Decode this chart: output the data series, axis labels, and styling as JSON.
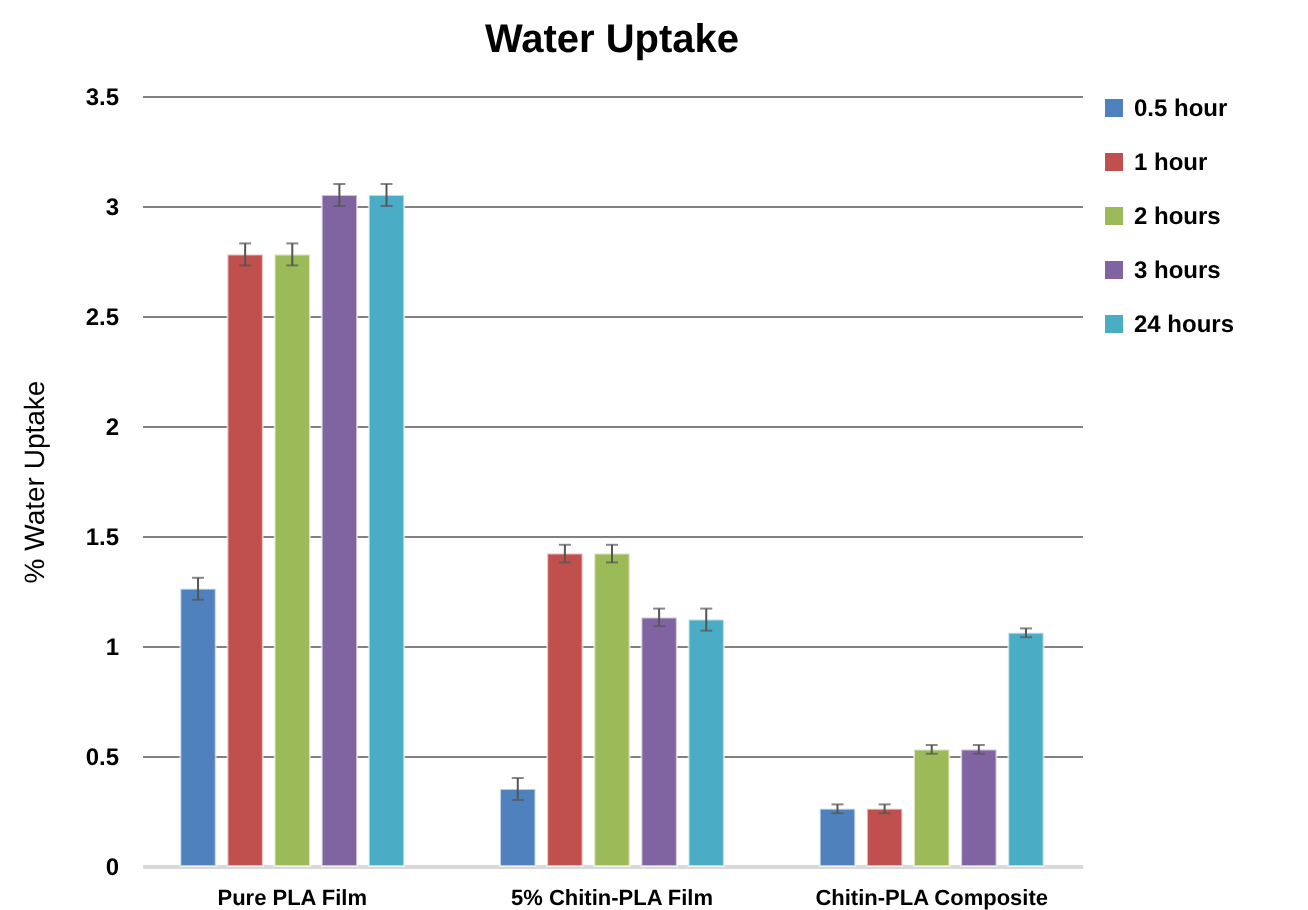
{
  "chart_data": {
    "type": "bar",
    "title": "Water Uptake",
    "ylabel": "% Water Uptake",
    "categories": [
      "Pure PLA Film",
      "5% Chitin-PLA Film",
      "Chitin-PLA Composite"
    ],
    "series": [
      {
        "name": "0.5 hour",
        "color": "#4f81bd",
        "values": [
          1.26,
          0.35,
          0.26
        ],
        "errors": [
          0.05,
          0.05,
          0.02
        ]
      },
      {
        "name": "1 hour",
        "color": "#c0504d",
        "values": [
          2.78,
          1.42,
          0.26
        ],
        "errors": [
          0.05,
          0.04,
          0.02
        ]
      },
      {
        "name": "2 hours",
        "color": "#9bbb59",
        "values": [
          2.78,
          1.42,
          0.53
        ],
        "errors": [
          0.05,
          0.04,
          0.02
        ]
      },
      {
        "name": "3 hours",
        "color": "#8064a2",
        "values": [
          3.05,
          1.13,
          0.53
        ],
        "errors": [
          0.05,
          0.04,
          0.02
        ]
      },
      {
        "name": "24 hours",
        "color": "#4bacc6",
        "values": [
          3.05,
          1.12,
          1.06
        ],
        "errors": [
          0.05,
          0.05,
          0.02
        ]
      }
    ],
    "ylim": [
      0,
      3.5
    ],
    "yticks": [
      0,
      0.5,
      1,
      1.5,
      2,
      2.5,
      3,
      3.5
    ],
    "grid": "y",
    "legend": "right"
  }
}
